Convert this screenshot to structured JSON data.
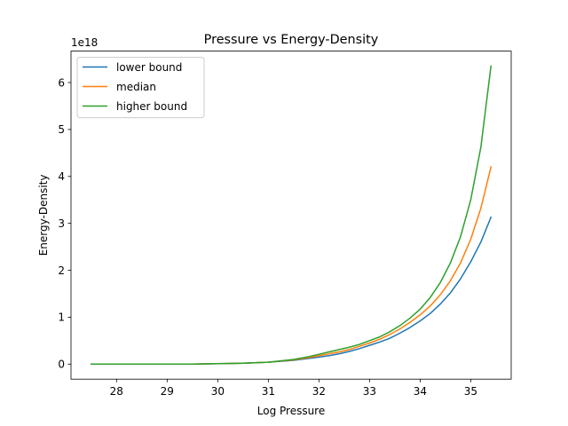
{
  "chart_data": {
    "type": "line",
    "title": "Pressure vs Energy-Density",
    "xlabel": "Log Pressure",
    "ylabel": "Energy-Density",
    "y_offset_label": "1e18",
    "y_scale_factor": 1e+18,
    "xlim": [
      27.1,
      35.8
    ],
    "ylim": [
      -0.32,
      6.67
    ],
    "x_ticks": [
      28,
      29,
      30,
      31,
      32,
      33,
      34,
      35
    ],
    "y_ticks": [
      0,
      1,
      2,
      3,
      4,
      5,
      6
    ],
    "grid": false,
    "legend_position": "upper-left",
    "x": [
      27.5,
      28.0,
      28.5,
      29.0,
      29.5,
      30.0,
      30.5,
      31.0,
      31.5,
      31.8,
      32.0,
      32.2,
      32.4,
      32.6,
      32.8,
      33.0,
      33.2,
      33.4,
      33.6,
      33.8,
      34.0,
      34.2,
      34.4,
      34.6,
      34.8,
      35.0,
      35.2,
      35.4
    ],
    "series": [
      {
        "name": "lower bound",
        "color": "#1f77b4",
        "values": [
          0.0,
          0.0,
          0.0,
          0.0,
          0.0,
          0.01,
          0.02,
          0.04,
          0.08,
          0.12,
          0.15,
          0.18,
          0.22,
          0.27,
          0.33,
          0.4,
          0.47,
          0.55,
          0.66,
          0.78,
          0.92,
          1.08,
          1.28,
          1.52,
          1.82,
          2.18,
          2.6,
          3.13
        ]
      },
      {
        "name": "median",
        "color": "#ff7f0e",
        "values": [
          0.0,
          0.0,
          0.0,
          0.0,
          0.0,
          0.01,
          0.02,
          0.04,
          0.09,
          0.14,
          0.18,
          0.22,
          0.26,
          0.31,
          0.38,
          0.45,
          0.53,
          0.63,
          0.75,
          0.89,
          1.05,
          1.24,
          1.48,
          1.78,
          2.16,
          2.66,
          3.32,
          4.2
        ]
      },
      {
        "name": "higher bound",
        "color": "#2ca02c",
        "values": [
          0.0,
          0.0,
          0.0,
          0.0,
          0.0,
          0.01,
          0.02,
          0.04,
          0.1,
          0.16,
          0.21,
          0.26,
          0.31,
          0.36,
          0.42,
          0.5,
          0.58,
          0.69,
          0.82,
          0.98,
          1.17,
          1.42,
          1.74,
          2.16,
          2.72,
          3.5,
          4.62,
          6.35
        ]
      }
    ]
  }
}
